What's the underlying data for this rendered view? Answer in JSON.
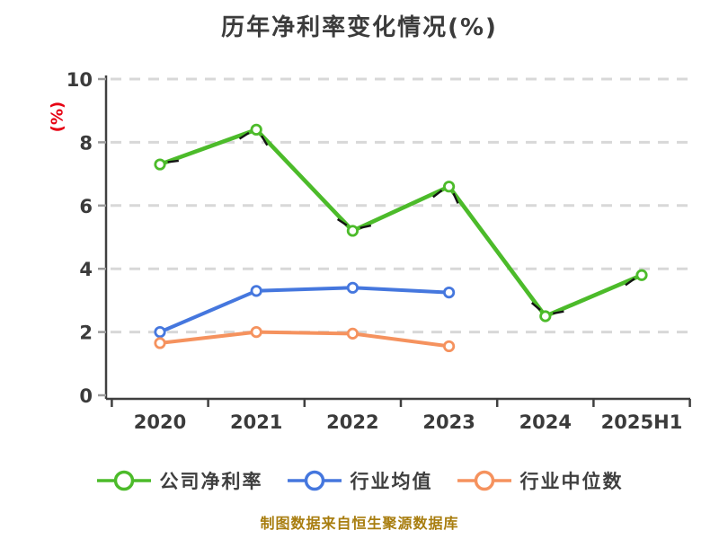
{
  "page": {
    "background": "#FFFFFF"
  },
  "chart_data": {
    "type": "line",
    "title": "历年净利率变化情况(%)",
    "ylabel": "(%)",
    "source_note": "制图数据来自恒生聚源数据库",
    "categories": [
      "2020",
      "2021",
      "2022",
      "2023",
      "2024",
      "2025H1"
    ],
    "ylim": [
      0,
      10
    ],
    "yticks": [
      0,
      2,
      4,
      6,
      8,
      10
    ],
    "grid": {
      "horizontal_dashed": true,
      "color": "#D8D8D8"
    },
    "legend_position": "bottom",
    "axis_color": "#3F3F3F",
    "tick_label_color": "#3B3B3B",
    "title_color": "#3B3B3B",
    "ylabel_color": "#E60012",
    "source_note_color": "#A87D0F",
    "marker_fill": "#FFFFFF",
    "sketch_dash_color": "#141414",
    "series": [
      {
        "name": "公司净利率",
        "color": "#4CBB2A",
        "values": [
          7.3,
          8.4,
          5.2,
          6.6,
          2.5,
          3.8
        ]
      },
      {
        "name": "行业均值",
        "color": "#4577DE",
        "values": [
          2.0,
          3.3,
          3.4,
          3.25,
          null,
          null
        ]
      },
      {
        "name": "行业中位数",
        "color": "#F5925E",
        "values": [
          1.65,
          2.0,
          1.95,
          1.55,
          null,
          null
        ]
      }
    ]
  }
}
